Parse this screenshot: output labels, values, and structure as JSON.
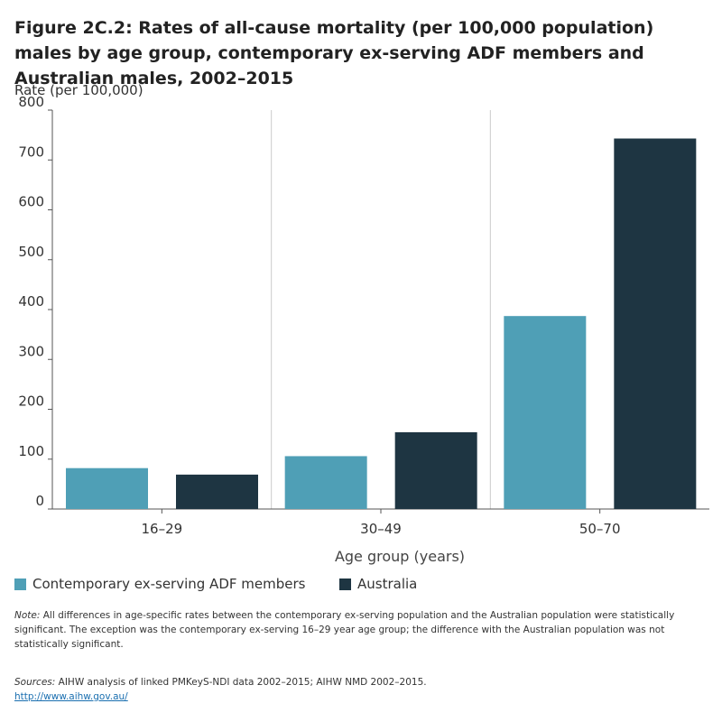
{
  "title": "Figure 2C.2: Rates of all-cause mortality (per 100,000 population) males by age group, contemporary ex-serving ADF members and Australian males, 2002–2015",
  "colors": {
    "ex_serving": "#4f9fb6",
    "australia": "#1e3542",
    "axis": "#555555",
    "divider": "#cccccc"
  },
  "chart_data": {
    "type": "bar",
    "categories": [
      "16–29",
      "30–49",
      "50–70"
    ],
    "series": [
      {
        "name": "Contemporary ex-serving ADF members",
        "values": [
          82,
          106,
          387
        ]
      },
      {
        "name": "Australia",
        "values": [
          69,
          154,
          743
        ]
      }
    ],
    "xlabel": "Age group (years)",
    "ylabel": "Rate (per 100,000)",
    "ylim": [
      0,
      800
    ],
    "yticks": [
      "0",
      "100",
      "200",
      "300",
      "400",
      "500",
      "600",
      "700",
      "800"
    ],
    "grid": false,
    "legend_position": "bottom-left"
  },
  "note": {
    "label": "Note:",
    "text": " All differences in age-specific rates between the contemporary ex-serving population and the Australian population were statistically significant. The exception was the contemporary ex-serving 16–29 year age group; the difference with the Australian population was not statistically significant."
  },
  "sources": {
    "label": "Sources:",
    "text": " AIHW analysis of linked PMKeyS-NDI data 2002–2015; AIHW NMD 2002–2015.",
    "link": "http://www.aihw.gov.au/"
  }
}
